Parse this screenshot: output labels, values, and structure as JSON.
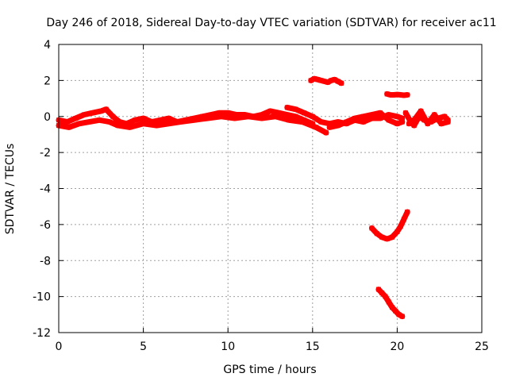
{
  "chart_data": {
    "type": "scatter",
    "title": "Day 246 of 2018, Sidereal Day-to-day VTEC variation (SDTVAR) for receiver ac11",
    "xlabel": "GPS time / hours",
    "ylabel": "SDTVAR / TECUs",
    "xlim": [
      0,
      25
    ],
    "ylim": [
      -12,
      4
    ],
    "xticks": [
      0,
      5,
      10,
      15,
      20,
      25
    ],
    "yticks": [
      -12,
      -10,
      -8,
      -6,
      -4,
      -2,
      0,
      2,
      4
    ],
    "grid": true,
    "legend": "none",
    "series_color": "#ff0000",
    "series": [
      {
        "name": "main-band-a",
        "x": [
          0.0,
          0.5,
          1.0,
          1.5,
          2.0,
          2.5,
          2.8,
          3.2,
          3.6,
          4.0,
          4.5,
          5.0,
          5.5,
          6.0,
          6.5,
          7.0,
          7.5,
          8.0,
          8.5,
          9.0,
          9.5,
          10.0,
          10.5,
          11.0,
          11.5,
          12.0,
          12.5,
          13.0,
          13.5,
          14.0,
          14.5,
          15.0
        ],
        "y": [
          -0.2,
          -0.3,
          -0.1,
          0.1,
          0.2,
          0.3,
          0.4,
          0.0,
          -0.3,
          -0.4,
          -0.2,
          -0.1,
          -0.3,
          -0.2,
          -0.1,
          -0.3,
          -0.2,
          -0.1,
          0.0,
          0.1,
          0.2,
          0.2,
          0.1,
          0.1,
          0.0,
          0.1,
          0.3,
          0.2,
          0.1,
          0.0,
          -0.2,
          -0.4
        ]
      },
      {
        "name": "main-band-b",
        "x": [
          0.0,
          0.6,
          1.2,
          1.8,
          2.4,
          3.0,
          3.5,
          4.2,
          5.0,
          5.8,
          6.5,
          7.2,
          8.0,
          8.8,
          9.6,
          10.4,
          11.2,
          12.0,
          12.8,
          13.6,
          14.4,
          15.2,
          15.8
        ],
        "y": [
          -0.5,
          -0.6,
          -0.4,
          -0.3,
          -0.2,
          -0.3,
          -0.5,
          -0.6,
          -0.4,
          -0.5,
          -0.4,
          -0.3,
          -0.2,
          -0.1,
          0.0,
          -0.1,
          0.0,
          -0.1,
          0.0,
          -0.2,
          -0.3,
          -0.6,
          -0.9
        ]
      },
      {
        "name": "main-band-c",
        "x": [
          13.5,
          14.0,
          14.5,
          15.0,
          15.5,
          16.0,
          16.5,
          17.0,
          17.5,
          18.0,
          18.5,
          19.0,
          19.5,
          20.0,
          20.3
        ],
        "y": [
          0.5,
          0.4,
          0.2,
          0.0,
          -0.3,
          -0.4,
          -0.3,
          -0.4,
          -0.2,
          -0.3,
          -0.1,
          -0.1,
          0.1,
          0.0,
          -0.1
        ]
      },
      {
        "name": "main-band-d",
        "x": [
          16.0,
          16.5,
          17.0,
          17.5,
          18.0,
          18.5,
          19.0,
          19.5,
          20.0,
          20.3
        ],
        "y": [
          -0.6,
          -0.5,
          -0.3,
          -0.1,
          0.0,
          0.1,
          0.2,
          -0.2,
          -0.4,
          -0.3
        ]
      },
      {
        "name": "late-band",
        "x": [
          20.5,
          20.8,
          21.0,
          21.3,
          21.6,
          22.0,
          22.4,
          22.8,
          23.0
        ],
        "y": [
          0.2,
          -0.3,
          -0.5,
          0.0,
          -0.2,
          -0.3,
          -0.1,
          0.0,
          -0.2
        ]
      },
      {
        "name": "late-band-2",
        "x": [
          20.7,
          21.0,
          21.4,
          21.8,
          22.2,
          22.6,
          23.0
        ],
        "y": [
          -0.4,
          -0.2,
          0.3,
          -0.4,
          0.1,
          -0.4,
          -0.3
        ]
      },
      {
        "name": "arc-plus-2",
        "x": [
          14.9,
          15.1,
          15.3,
          15.5,
          15.7,
          15.9,
          16.1,
          16.3,
          16.5,
          16.7
        ],
        "y": [
          2.0,
          2.1,
          2.05,
          2.0,
          1.95,
          1.9,
          2.0,
          2.05,
          1.95,
          1.85
        ]
      },
      {
        "name": "arc-plus-1",
        "x": [
          19.4,
          19.6,
          19.8,
          20.0,
          20.2,
          20.4,
          20.6
        ],
        "y": [
          1.25,
          1.2,
          1.2,
          1.22,
          1.2,
          1.18,
          1.2
        ]
      },
      {
        "name": "arc-minus-6",
        "x": [
          18.5,
          18.8,
          19.1,
          19.4,
          19.7,
          20.0,
          20.2,
          20.4,
          20.6
        ],
        "y": [
          -6.2,
          -6.5,
          -6.7,
          -6.8,
          -6.7,
          -6.4,
          -6.1,
          -5.7,
          -5.3
        ]
      },
      {
        "name": "arc-minus-10",
        "x": [
          18.9,
          19.1,
          19.3,
          19.5,
          19.7,
          19.9,
          20.1,
          20.3
        ],
        "y": [
          -9.6,
          -9.8,
          -10.0,
          -10.3,
          -10.6,
          -10.8,
          -11.0,
          -11.1
        ]
      }
    ]
  }
}
